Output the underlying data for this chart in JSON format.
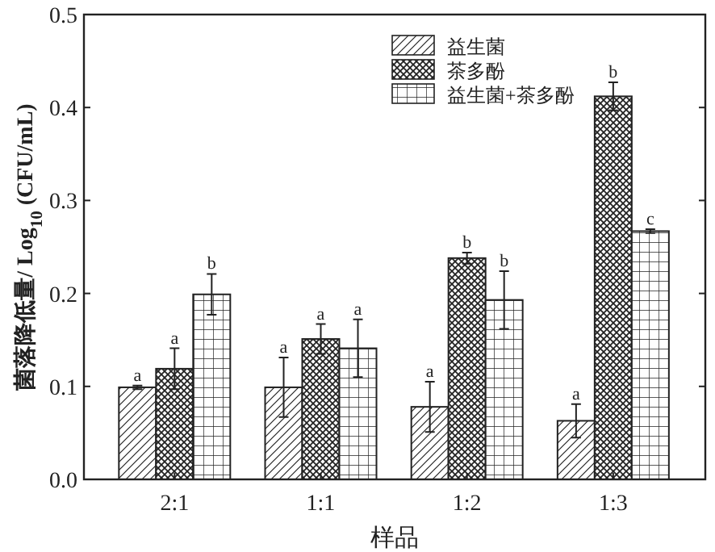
{
  "chart_data": {
    "type": "bar",
    "xlabel": "样品",
    "ylabel": "菌落降低量/ Log$_{10}$ (CFU/mL)",
    "categories": [
      "2:1",
      "1:1",
      "1:2",
      "1:3"
    ],
    "ylim": [
      0,
      0.5
    ],
    "yticks": [
      {
        "value": 0,
        "label": "0.0"
      },
      0.1,
      0.2,
      0.3,
      0.4,
      0.5
    ],
    "grid": false,
    "legend": "top right",
    "series": [
      {
        "name": "益生菌",
        "color": "#222222",
        "values": [
          0.099,
          0.099,
          0.078,
          0.063
        ],
        "errors": [
          0.002,
          0.032,
          0.027,
          0.018
        ],
        "value_labels": [
          "a",
          "a",
          "a",
          "a"
        ]
      },
      {
        "name": "茶多酚",
        "color": "#222222",
        "values": [
          0.119,
          0.151,
          0.238,
          0.412
        ],
        "errors": [
          0.022,
          0.016,
          0.006,
          0.015
        ],
        "value_labels": [
          "a",
          "a",
          "b",
          "b"
        ]
      },
      {
        "name": "益生菌+茶多酚",
        "color": "#222222",
        "values": [
          0.199,
          0.141,
          0.193,
          0.267
        ],
        "errors": [
          0.022,
          0.031,
          0.031,
          0.002
        ],
        "value_labels": [
          "b",
          "a",
          "b",
          "c"
        ]
      }
    ]
  }
}
